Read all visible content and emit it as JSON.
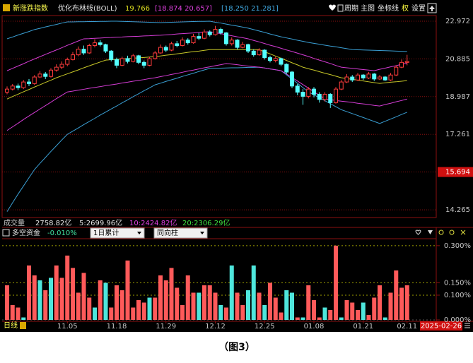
{
  "header": {
    "indicator_name": "新涨跌指数",
    "study": "优化布林线(BOLL)",
    "mid": "19.766",
    "inner": "[18.874  20.657]",
    "outer": "[18.250  21.281]",
    "menu": [
      "周期",
      "主图",
      "坐标线",
      "权",
      "设置"
    ]
  },
  "volume_header": {
    "title": "成交量",
    "volume": "2758.82亿",
    "ma5": "5:2699.96亿",
    "ma10": "10:2424.82亿",
    "ma20": "20:2306.29亿"
  },
  "footer": {
    "period": "日线",
    "date": "2025-02-26"
  },
  "caption": "（图3）",
  "chart_data": [
    {
      "type": "candlestick",
      "log_scale": true,
      "ylim": [
        13.99,
        23.3
      ],
      "yticks": [
        22.972,
        20.885,
        18.987,
        17.261,
        15.694,
        14.265
      ],
      "highlight_tick": 4,
      "grid": true,
      "up_color": "#ff3c3c",
      "down_color": "#54ffff",
      "categories": [
        null,
        null,
        null,
        null,
        null,
        null,
        null,
        null,
        null,
        null,
        null,
        "11.05",
        null,
        null,
        null,
        null,
        null,
        null,
        null,
        null,
        "11.18",
        null,
        null,
        null,
        null,
        null,
        null,
        null,
        null,
        "11.29",
        null,
        null,
        null,
        null,
        null,
        null,
        null,
        null,
        "12.12",
        null,
        null,
        null,
        null,
        null,
        null,
        null,
        null,
        "12.25",
        null,
        null,
        null,
        null,
        null,
        null,
        null,
        null,
        "01.08",
        null,
        null,
        null,
        null,
        null,
        null,
        null,
        null,
        "01.21",
        null,
        null,
        null,
        null,
        null,
        null,
        null,
        "02.11"
      ],
      "ohlc": [
        [
          19.2,
          19.48,
          19.1,
          19.35
        ],
        [
          19.35,
          19.6,
          19.28,
          19.5
        ],
        [
          19.5,
          19.62,
          19.3,
          19.42
        ],
        [
          19.42,
          19.8,
          19.35,
          19.7
        ],
        [
          19.7,
          19.85,
          19.5,
          19.62
        ],
        [
          19.62,
          20.05,
          19.55,
          19.95
        ],
        [
          19.95,
          20.25,
          19.9,
          20.1
        ],
        [
          20.1,
          20.2,
          19.85,
          19.98
        ],
        [
          19.98,
          20.4,
          19.92,
          20.3
        ],
        [
          20.3,
          20.6,
          20.22,
          20.45
        ],
        [
          20.45,
          20.75,
          20.35,
          20.6
        ],
        [
          20.6,
          20.95,
          20.5,
          20.85
        ],
        [
          20.85,
          21.25,
          20.8,
          21.1
        ],
        [
          21.1,
          21.55,
          21.02,
          21.4
        ],
        [
          21.4,
          21.6,
          21.1,
          21.2
        ],
        [
          21.2,
          21.7,
          21.15,
          21.6
        ],
        [
          21.6,
          21.95,
          21.5,
          21.75
        ],
        [
          21.75,
          21.9,
          21.55,
          21.65
        ],
        [
          21.65,
          21.7,
          21.2,
          21.3
        ],
        [
          21.3,
          21.35,
          20.75,
          20.85
        ],
        [
          20.85,
          20.95,
          20.4,
          20.55
        ],
        [
          20.55,
          21.0,
          20.5,
          20.9
        ],
        [
          20.9,
          21.05,
          20.65,
          20.75
        ],
        [
          20.75,
          21.15,
          20.7,
          21.05
        ],
        [
          21.05,
          21.1,
          20.6,
          20.7
        ],
        [
          20.7,
          20.8,
          20.4,
          20.55
        ],
        [
          20.55,
          21.0,
          20.5,
          20.9
        ],
        [
          20.9,
          21.3,
          20.85,
          21.2
        ],
        [
          21.2,
          21.65,
          21.15,
          21.5
        ],
        [
          21.5,
          21.6,
          21.25,
          21.35
        ],
        [
          21.35,
          21.8,
          21.3,
          21.7
        ],
        [
          21.7,
          21.85,
          21.5,
          21.6
        ],
        [
          21.6,
          22.05,
          21.55,
          21.9
        ],
        [
          21.9,
          22.0,
          21.65,
          21.75
        ],
        [
          21.75,
          22.25,
          21.7,
          22.1
        ],
        [
          22.1,
          22.3,
          21.9,
          22.0
        ],
        [
          22.0,
          22.5,
          21.95,
          22.35
        ],
        [
          22.35,
          22.45,
          22.1,
          22.2
        ],
        [
          22.2,
          22.7,
          22.15,
          22.5
        ],
        [
          22.5,
          22.6,
          22.2,
          22.3
        ],
        [
          22.3,
          22.35,
          21.6,
          21.7
        ],
        [
          21.7,
          22.05,
          21.6,
          21.9
        ],
        [
          21.9,
          21.95,
          21.4,
          21.5
        ],
        [
          21.5,
          21.8,
          21.45,
          21.65
        ],
        [
          21.65,
          21.7,
          21.2,
          21.3
        ],
        [
          21.3,
          21.4,
          21.0,
          21.1
        ],
        [
          21.1,
          21.45,
          21.05,
          21.35
        ],
        [
          21.35,
          21.4,
          20.85,
          20.95
        ],
        [
          20.95,
          21.05,
          20.7,
          20.8
        ],
        [
          20.8,
          21.0,
          20.7,
          20.9
        ],
        [
          20.9,
          20.95,
          20.5,
          20.6
        ],
        [
          20.6,
          20.65,
          20.1,
          20.2
        ],
        [
          20.2,
          20.25,
          19.4,
          19.5
        ],
        [
          19.5,
          19.6,
          19.05,
          19.2
        ],
        [
          19.2,
          19.35,
          18.6,
          19.0
        ],
        [
          19.0,
          19.45,
          18.9,
          19.35
        ],
        [
          19.35,
          19.45,
          18.95,
          19.1
        ],
        [
          19.1,
          19.2,
          18.7,
          18.85
        ],
        [
          18.85,
          19.2,
          18.75,
          19.1
        ],
        [
          19.1,
          19.15,
          18.45,
          18.7
        ],
        [
          18.7,
          19.45,
          18.65,
          19.35
        ],
        [
          19.35,
          19.8,
          19.3,
          19.7
        ],
        [
          19.7,
          20.1,
          19.65,
          19.95
        ],
        [
          19.95,
          20.05,
          19.7,
          19.8
        ],
        [
          19.8,
          20.15,
          19.75,
          20.05
        ],
        [
          20.05,
          20.1,
          19.8,
          19.9
        ],
        [
          19.9,
          20.2,
          19.85,
          20.1
        ],
        [
          20.1,
          20.15,
          19.75,
          19.85
        ],
        [
          19.85,
          20.05,
          19.8,
          19.95
        ],
        [
          19.95,
          20.0,
          19.75,
          19.8
        ],
        [
          19.8,
          20.15,
          19.75,
          20.05
        ],
        [
          20.05,
          20.55,
          20.0,
          20.45
        ],
        [
          20.45,
          20.85,
          20.4,
          20.7
        ],
        [
          20.7,
          21.1,
          20.55,
          20.75
        ]
      ],
      "lines": [
        {
          "color": "#3a9fd4",
          "values": [
            21.97,
            22.07,
            22.18,
            22.28,
            22.38,
            22.49,
            22.56,
            22.64,
            22.71,
            22.78,
            22.86,
            22.93,
            22.93,
            22.94,
            22.94,
            22.95,
            22.95,
            22.96,
            22.96,
            22.97,
            22.97,
            22.96,
            22.95,
            22.94,
            22.93,
            22.92,
            22.91,
            22.9,
            22.89,
            22.9,
            22.91,
            22.92,
            22.93,
            22.94,
            22.95,
            22.96,
            22.96,
            22.97,
            22.91,
            22.86,
            22.8,
            22.74,
            22.69,
            22.63,
            22.57,
            22.49,
            22.41,
            22.33,
            22.24,
            22.16,
            22.08,
            22.02,
            21.96,
            21.89,
            21.83,
            21.77,
            21.72,
            21.67,
            21.62,
            21.57,
            21.53,
            21.48,
            21.43,
            21.38,
            21.37,
            21.36,
            21.35,
            21.34,
            21.33,
            21.32,
            21.31,
            21.3,
            21.29,
            21.28
          ]
        },
        {
          "color": "#3a9fd4",
          "values": [
            14.2,
            14.52,
            14.84,
            15.15,
            15.47,
            15.79,
            16.04,
            16.28,
            16.53,
            16.77,
            17.02,
            17.26,
            17.4,
            17.54,
            17.69,
            17.83,
            17.97,
            18.12,
            18.26,
            18.4,
            18.54,
            18.69,
            18.83,
            18.98,
            19.12,
            19.27,
            19.41,
            19.56,
            19.64,
            19.73,
            19.81,
            19.89,
            19.98,
            20.06,
            20.14,
            20.23,
            20.31,
            20.39,
            20.4,
            20.4,
            20.41,
            20.42,
            20.42,
            20.43,
            20.44,
            20.44,
            20.45,
            20.41,
            20.36,
            20.32,
            20.27,
            20.06,
            19.85,
            19.64,
            19.42,
            19.21,
            19.07,
            18.93,
            18.79,
            18.65,
            18.51,
            18.37,
            18.28,
            18.19,
            18.1,
            18.01,
            17.92,
            17.83,
            17.74,
            17.84,
            17.94,
            18.04,
            18.15,
            18.25
          ]
        },
        {
          "color": "#d43cd4",
          "values": [
            20.27,
            20.39,
            20.51,
            20.63,
            20.76,
            20.88,
            21.0,
            21.12,
            21.24,
            21.36,
            21.48,
            21.61,
            21.73,
            21.85,
            21.97,
            21.98,
            22.0,
            22.01,
            22.03,
            22.04,
            22.06,
            22.07,
            22.09,
            22.1,
            22.11,
            22.13,
            22.14,
            22.16,
            22.17,
            22.19,
            22.21,
            22.24,
            22.26,
            22.28,
            22.3,
            22.33,
            22.35,
            22.37,
            22.31,
            22.26,
            22.2,
            22.14,
            22.08,
            22.03,
            21.97,
            21.88,
            21.8,
            21.71,
            21.62,
            21.54,
            21.45,
            21.36,
            21.28,
            21.19,
            21.1,
            21.01,
            20.91,
            20.82,
            20.73,
            20.64,
            20.54,
            20.45,
            20.42,
            20.39,
            20.36,
            20.33,
            20.3,
            20.27,
            20.34,
            20.4,
            20.47,
            20.53,
            20.6,
            20.66
          ]
        },
        {
          "color": "#d43cd4",
          "values": [
            17.43,
            17.59,
            17.75,
            17.92,
            18.08,
            18.24,
            18.4,
            18.56,
            18.72,
            18.89,
            19.05,
            19.21,
            19.25,
            19.3,
            19.34,
            19.39,
            19.43,
            19.47,
            19.52,
            19.56,
            19.6,
            19.65,
            19.69,
            19.74,
            19.78,
            19.82,
            19.87,
            19.91,
            19.97,
            20.02,
            20.08,
            20.13,
            20.19,
            20.25,
            20.3,
            20.36,
            20.42,
            20.47,
            20.53,
            20.58,
            20.64,
            20.61,
            20.58,
            20.54,
            20.51,
            20.48,
            20.45,
            20.41,
            20.36,
            20.32,
            20.27,
            20.1,
            19.92,
            19.75,
            19.57,
            19.4,
            19.22,
            19.05,
            18.87,
            18.84,
            18.8,
            18.77,
            18.74,
            18.71,
            18.67,
            18.64,
            18.61,
            18.57,
            18.54,
            18.61,
            18.67,
            18.74,
            18.8,
            18.87
          ]
        },
        {
          "color": "#c8c828",
          "values": [
            18.87,
            18.99,
            19.1,
            19.22,
            19.33,
            19.45,
            19.56,
            19.68,
            19.79,
            19.91,
            20.01,
            20.11,
            20.21,
            20.31,
            20.42,
            20.52,
            20.62,
            20.72,
            20.82,
            20.84,
            20.86,
            20.88,
            20.9,
            20.92,
            20.94,
            20.96,
            20.98,
            21.0,
            21.04,
            21.08,
            21.11,
            21.15,
            21.19,
            21.23,
            21.27,
            21.3,
            21.34,
            21.38,
            21.38,
            21.38,
            21.38,
            21.38,
            21.38,
            21.38,
            21.38,
            21.38,
            21.38,
            21.26,
            21.15,
            21.03,
            20.92,
            20.8,
            20.68,
            20.57,
            20.45,
            20.37,
            20.3,
            20.22,
            20.14,
            20.07,
            19.99,
            19.91,
            19.87,
            19.83,
            19.79,
            19.75,
            19.71,
            19.67,
            19.63,
            19.66,
            19.69,
            19.71,
            19.74,
            19.77
          ]
        }
      ]
    },
    {
      "type": "bar",
      "title": "多空资金",
      "current": "-0.010%",
      "dropdowns": [
        "1日累计",
        "同向柱"
      ],
      "ylim": [
        0,
        0.311
      ],
      "yticks": [
        {
          "value": 0,
          "label": "0.000%"
        },
        {
          "value": 0.1,
          "label": "0.100%"
        },
        {
          "value": 0.15,
          "label": "0.150%"
        },
        {
          "value": 0.3,
          "label": "0.300%"
        }
      ],
      "grid": true,
      "palette": {
        "up": "#ff5a5a",
        "down": "#4ee6dc"
      },
      "values": [
        0.14,
        0.06,
        0.05,
        0.01,
        0.22,
        0.18,
        0.16,
        0.12,
        0.17,
        0.22,
        0.17,
        0.26,
        0.21,
        0.11,
        0.19,
        0.09,
        0.05,
        0.16,
        0.15,
        0.05,
        0.14,
        0.12,
        0.24,
        0.05,
        0.08,
        0.07,
        0.09,
        0.09,
        0.18,
        0.16,
        0.21,
        0.13,
        0.06,
        0.18,
        0.11,
        0.11,
        0.14,
        0.14,
        0.11,
        0.06,
        0.05,
        0.22,
        0.11,
        0.06,
        0.12,
        0.22,
        0.11,
        0.06,
        0.15,
        0.09,
        0.03,
        0.12,
        0.11,
        0.01,
        0.01,
        0.14,
        0.08,
        0.01,
        0.05,
        0.04,
        0.3,
        0.01,
        0.08,
        0.07,
        0.04,
        0.07,
        0.02,
        0.09,
        0.14,
        0.01,
        0.11,
        0.2,
        0.13,
        0.14
      ],
      "direction": [
        "up",
        "up",
        "up",
        "down",
        "up",
        "up",
        "down",
        "up",
        "down",
        "up",
        "up",
        "up",
        "up",
        "up",
        "up",
        "up",
        "down",
        "up",
        "down",
        "up",
        "up",
        "up",
        "up",
        "up",
        "up",
        "up",
        "down",
        "up",
        "up",
        "up",
        "up",
        "up",
        "up",
        "up",
        "up",
        "down",
        "up",
        "up",
        "up",
        "down",
        "up",
        "down",
        "up",
        "up",
        "down",
        "down",
        "up",
        "down",
        "up",
        "up",
        "up",
        "down",
        "down",
        "up",
        "down",
        "up",
        "up",
        "up",
        "down",
        "up",
        "up",
        "down",
        "up",
        "up",
        "up",
        "down",
        "up",
        "up",
        "up",
        "down",
        "up",
        "up",
        "up",
        "up"
      ]
    }
  ]
}
